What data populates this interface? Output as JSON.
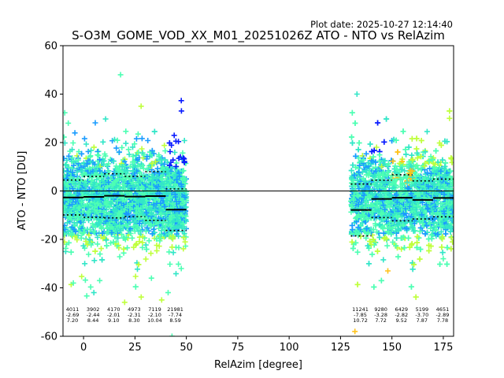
{
  "chart_data": {
    "type": "scatter",
    "title": "S-O3M_GOME_VOD_XX_M01_20251026Z ATO - NTO vs RelAzim",
    "plot_date": "Plot date: 2025-10-27 12:14:40",
    "xlabel": "RelAzim [degree]",
    "ylabel": "ATO - NTO [DU]",
    "xlim": [
      -10,
      180
    ],
    "ylim": [
      -60,
      60
    ],
    "xticks": [
      0,
      25,
      50,
      75,
      100,
      125,
      150,
      175
    ],
    "yticks": [
      -60,
      -40,
      -20,
      0,
      20,
      40,
      60
    ],
    "zero_line": 0,
    "marker": "+",
    "clusters": [
      {
        "x_range": [
          -10,
          50
        ],
        "y_center": -3,
        "y_spread": 15
      },
      {
        "x_range": [
          130,
          180
        ],
        "y_center": -3,
        "y_spread": 15
      }
    ],
    "bins": [
      {
        "x_center": -5,
        "x_range": [
          -10,
          0
        ],
        "count": "4011",
        "mean": "-2.69",
        "std": "7.20",
        "mean_value": -2.69,
        "std_value": 7.2
      },
      {
        "x_center": 5,
        "x_range": [
          0,
          10
        ],
        "count": "3902",
        "mean": "-2.44",
        "std": "8.44",
        "mean_value": -2.44,
        "std_value": 8.44
      },
      {
        "x_center": 15,
        "x_range": [
          10,
          20
        ],
        "count": "4170",
        "mean": "-2.01",
        "std": "9.10",
        "mean_value": -2.01,
        "std_value": 9.1
      },
      {
        "x_center": 25,
        "x_range": [
          20,
          30
        ],
        "count": "4973",
        "mean": "-2.31",
        "std": "8.30",
        "mean_value": -2.31,
        "std_value": 8.3
      },
      {
        "x_center": 35,
        "x_range": [
          30,
          40
        ],
        "count": "7119",
        "mean": "-2.10",
        "std": "10.04",
        "mean_value": -2.1,
        "std_value": 10.04
      },
      {
        "x_center": 45,
        "x_range": [
          40,
          50
        ],
        "count": "21981",
        "mean": "-7.74",
        "std": "8.59",
        "mean_value": -7.74,
        "std_value": 8.59
      },
      {
        "x_center": 135,
        "x_range": [
          130,
          140
        ],
        "count": "11241",
        "mean": "-7.85",
        "std": "10.72",
        "mean_value": -7.85,
        "std_value": 10.72
      },
      {
        "x_center": 145,
        "x_range": [
          140,
          150
        ],
        "count": "9280",
        "mean": "-3.28",
        "std": "7.72",
        "mean_value": -3.28,
        "std_value": 7.72
      },
      {
        "x_center": 155,
        "x_range": [
          150,
          160
        ],
        "count": "6429",
        "mean": "-2.82",
        "std": "9.52",
        "mean_value": -2.82,
        "std_value": 9.52
      },
      {
        "x_center": 165,
        "x_range": [
          160,
          170
        ],
        "count": "5199",
        "mean": "-3.70",
        "std": "7.87",
        "mean_value": -3.7,
        "std_value": 7.87
      },
      {
        "x_center": 175,
        "x_range": [
          170,
          180
        ],
        "count": "4651",
        "mean": "-2.89",
        "std": "7.78",
        "mean_value": -2.89,
        "std_value": 7.78
      }
    ],
    "colors": {
      "cyan": "#33e6c8",
      "mint": "#4dffb3",
      "blue": "#1a9cff",
      "darkblue": "#0a1cff",
      "yellowgreen": "#bfff3d",
      "orange": "#ffc21a",
      "axis": "#000000"
    }
  }
}
